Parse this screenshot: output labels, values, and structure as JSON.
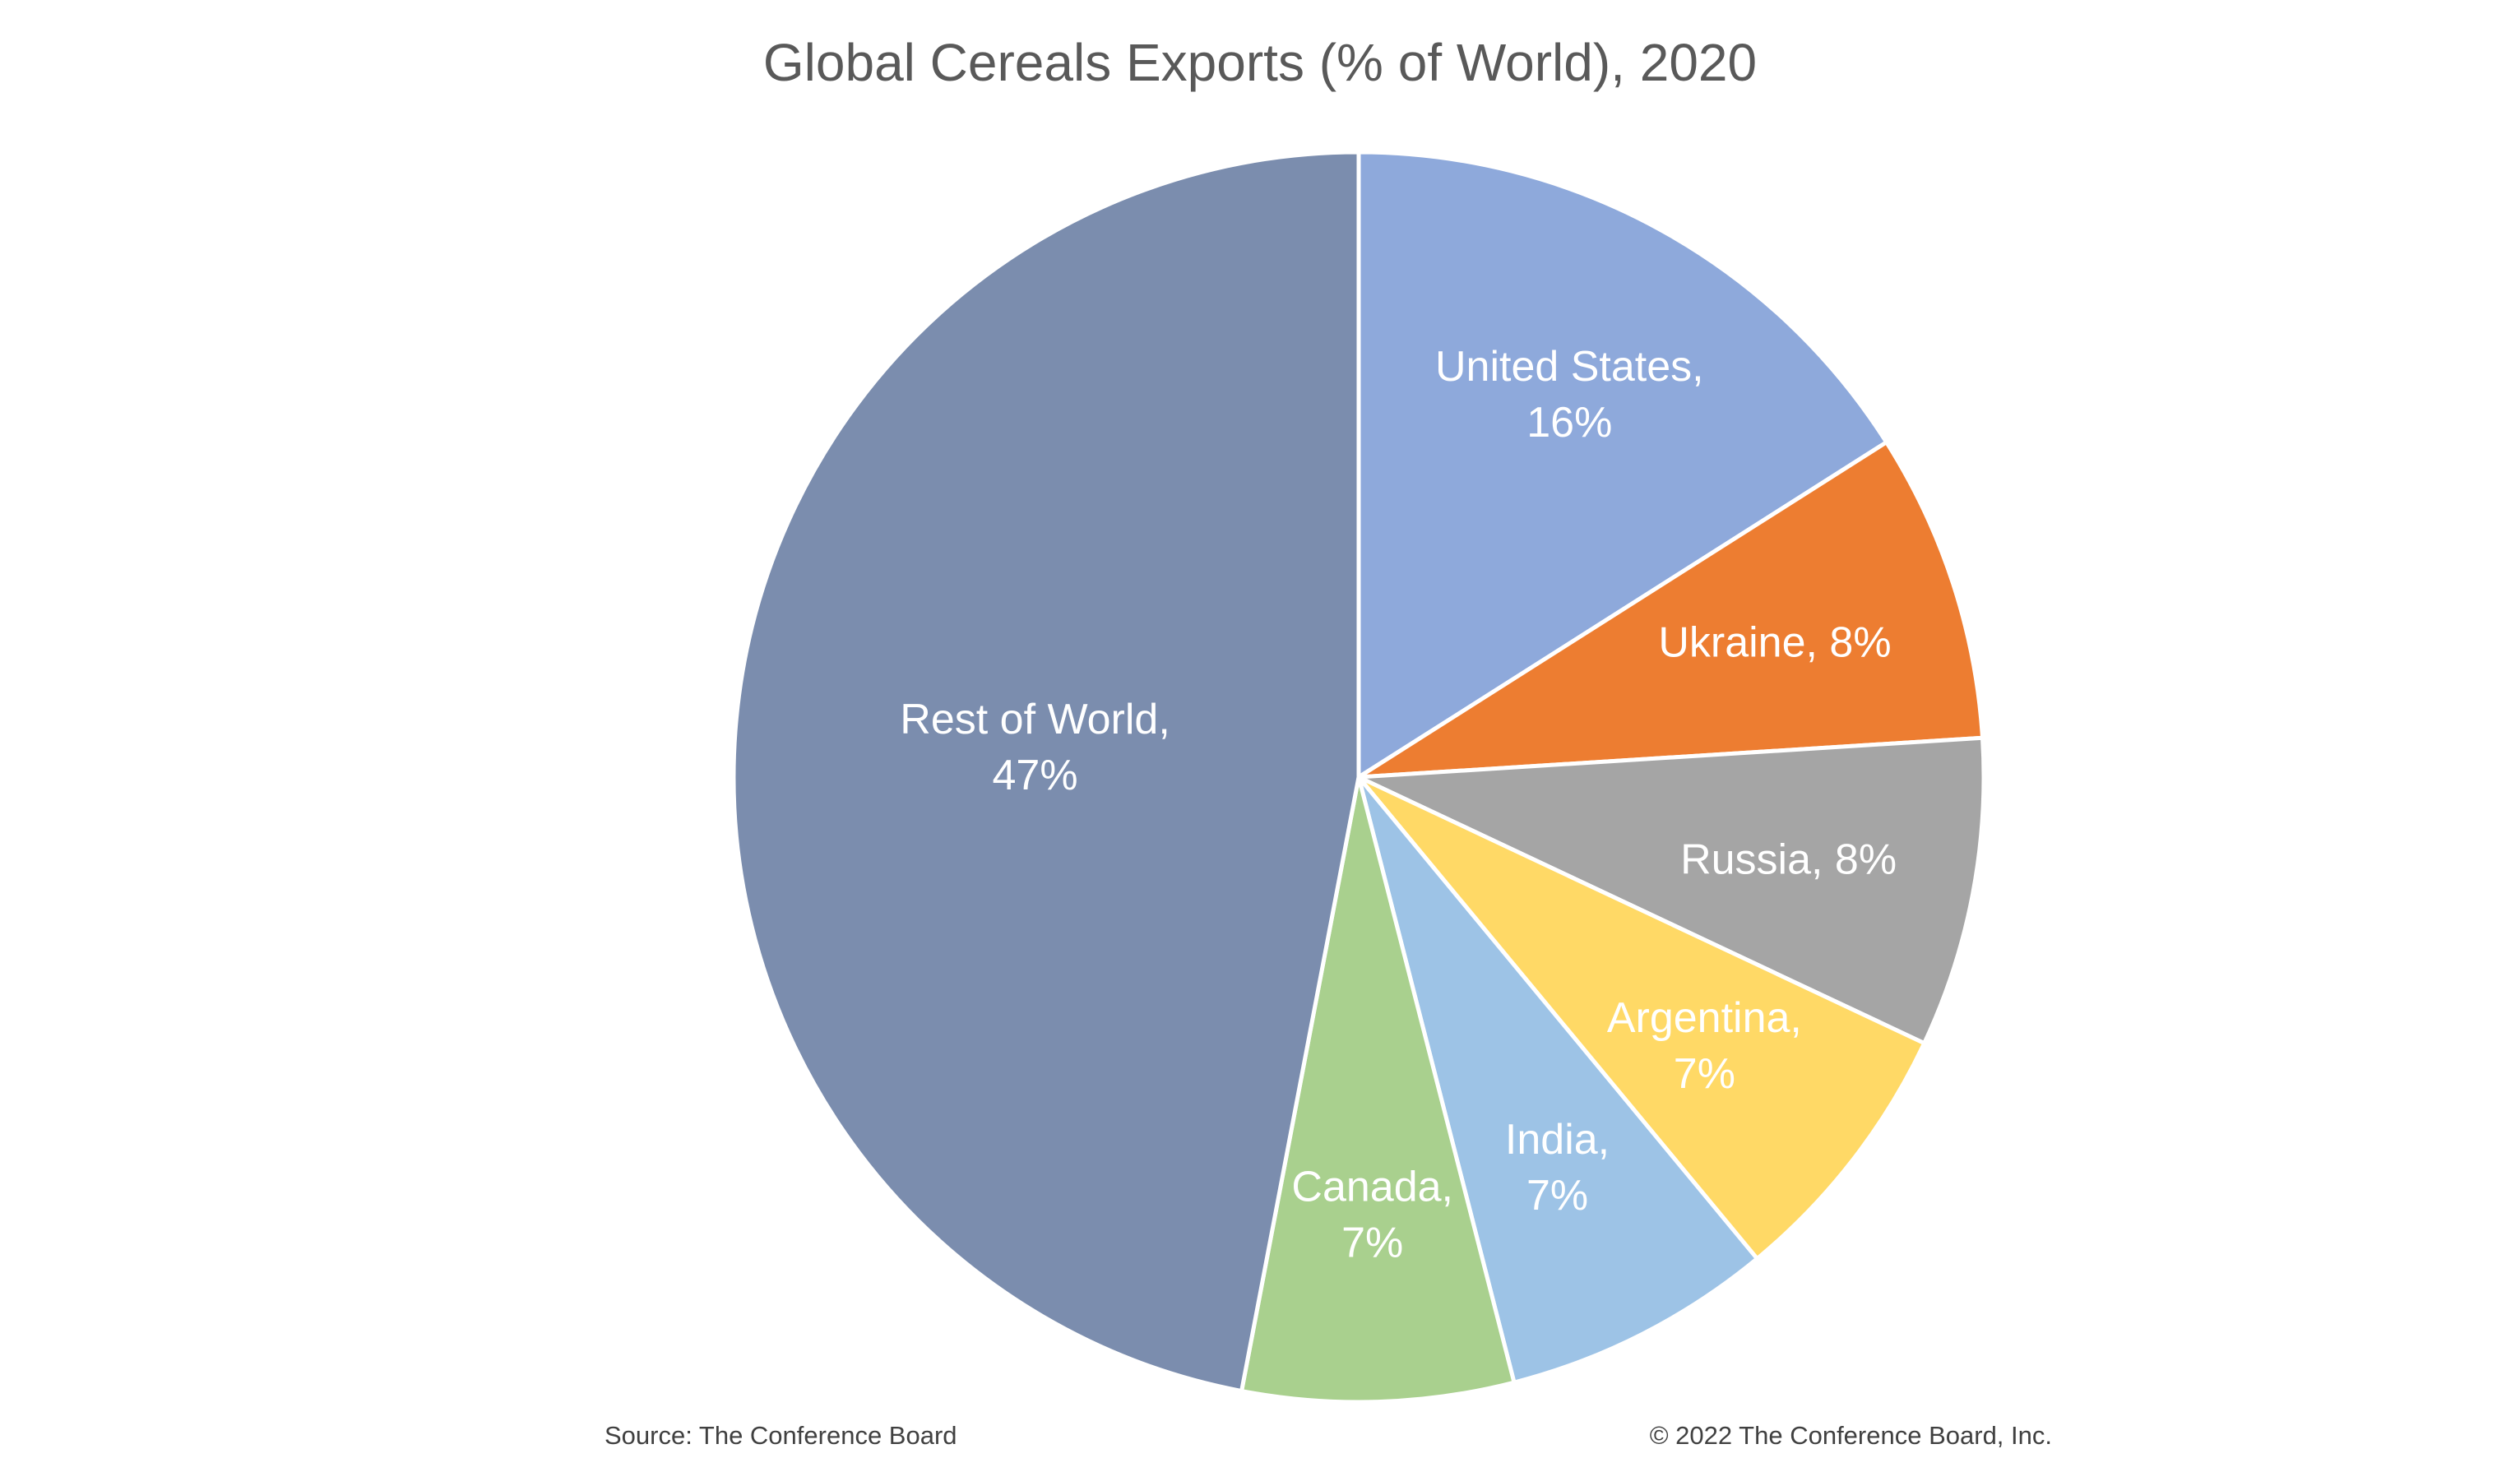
{
  "chart_data": {
    "type": "pie",
    "title": "Global Cereals Exports (% of World), 2020",
    "unit": "%",
    "start_angle": "12 o'clock",
    "direction": "clockwise",
    "slices": [
      {
        "label": "United States",
        "value": 16,
        "color": "#8EA9DB",
        "label_lines": [
          "United States,",
          "16%"
        ]
      },
      {
        "label": "Ukraine",
        "value": 8,
        "color": "#ED7D31",
        "label_lines": [
          "Ukraine, 8%"
        ]
      },
      {
        "label": "Russia",
        "value": 8,
        "color": "#A5A5A5",
        "label_lines": [
          "Russia, 8%"
        ]
      },
      {
        "label": "Argentina",
        "value": 7,
        "color": "#FFD966",
        "label_lines": [
          "Argentina,",
          "7%"
        ]
      },
      {
        "label": "India",
        "value": 7,
        "color": "#9DC3E6",
        "label_lines": [
          "India,",
          "7%"
        ]
      },
      {
        "label": "Canada",
        "value": 7,
        "color": "#A9D08E",
        "label_lines": [
          "Canada,",
          "7%"
        ]
      },
      {
        "label": "Rest of World",
        "value": 47,
        "color": "#7B8DAE",
        "label_lines": [
          "Rest of World,",
          "47%"
        ]
      }
    ]
  },
  "footer": {
    "source": "Source: The Conference Board",
    "copyright": "© 2022 The Conference Board, Inc."
  }
}
